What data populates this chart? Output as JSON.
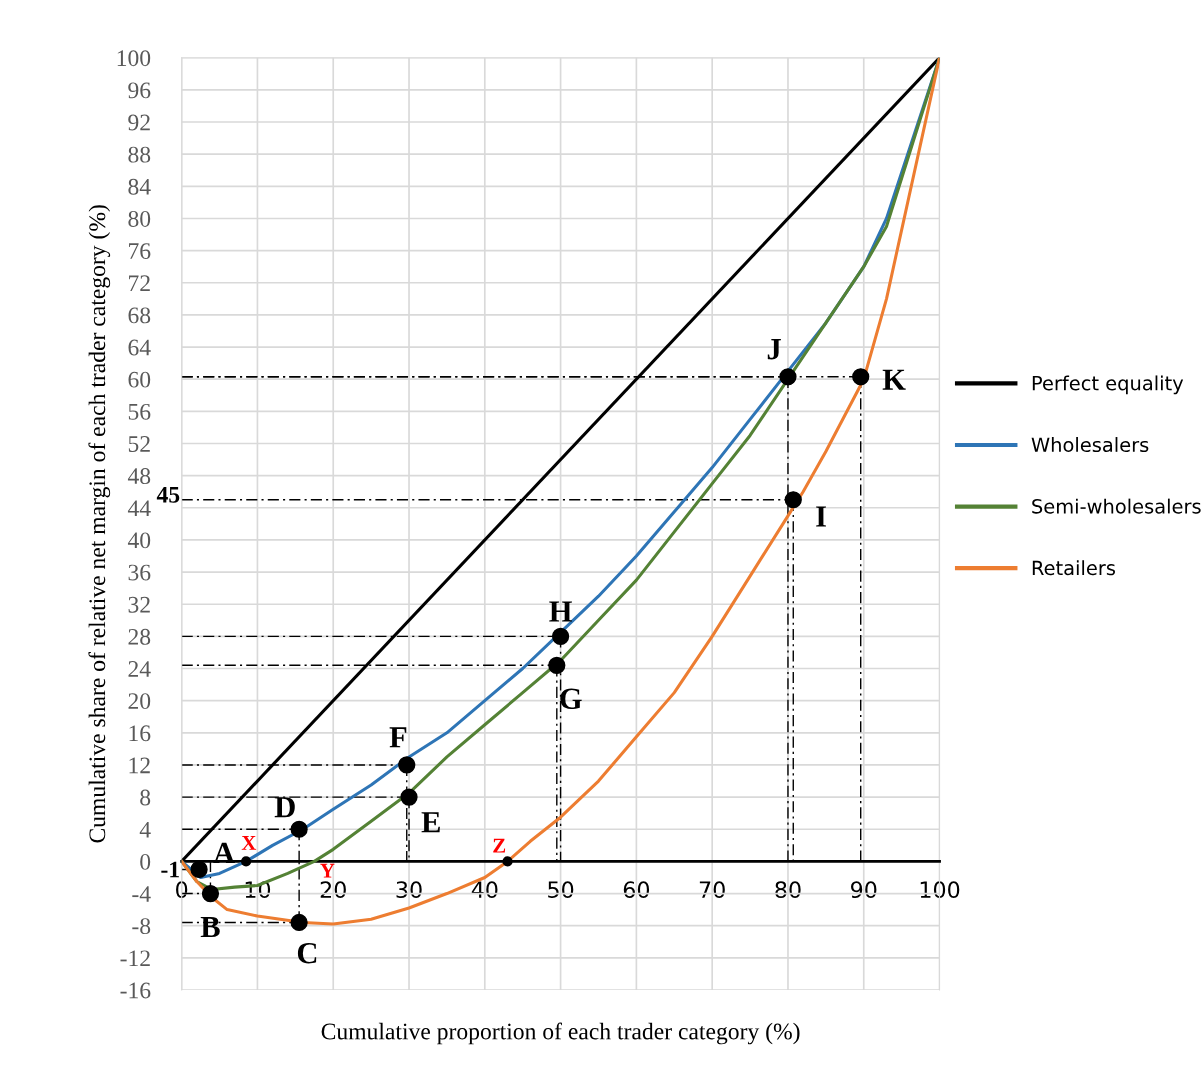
{
  "chart_data": {
    "type": "line",
    "xlabel": "Cumulative proportion of each trader category (%)",
    "ylabel": "Cumulative share of relative net margin of each trader category (%)",
    "xlim": [
      0,
      100
    ],
    "xticks": [
      0,
      10,
      20,
      30,
      40,
      50,
      60,
      70,
      80,
      90,
      100
    ],
    "ylim": [
      -16,
      100
    ],
    "yticks": [
      -16,
      -12,
      -8,
      -4,
      0,
      4,
      8,
      12,
      16,
      20,
      24,
      28,
      32,
      36,
      40,
      44,
      48,
      52,
      56,
      60,
      64,
      68,
      72,
      76,
      80,
      84,
      88,
      92,
      96,
      100
    ],
    "grid": true,
    "legend": "right",
    "marker": "none",
    "line_style": "solid",
    "series": [
      {
        "name": "Perfect equality",
        "color": "#000000",
        "x": [
          0,
          100
        ],
        "values": [
          0,
          100
        ]
      },
      {
        "name": "Wholesalers",
        "color": "#2e75b6",
        "x": [
          0,
          2.5,
          5,
          8.5,
          12,
          16,
          20,
          25,
          30,
          35,
          40,
          45,
          50,
          55,
          60,
          65,
          70,
          75,
          80,
          85,
          90,
          93,
          100
        ],
        "values": [
          0,
          -2,
          -1.5,
          0,
          2,
          4,
          6.5,
          9.5,
          13,
          16,
          20,
          24,
          28.5,
          33,
          38,
          43.5,
          49,
          55,
          61,
          67,
          74,
          80,
          100
        ]
      },
      {
        "name": "Semi-wholesalers",
        "color": "#548235",
        "x": [
          0,
          2,
          4,
          7,
          10,
          14,
          17.5,
          20,
          25,
          30,
          35,
          40,
          45,
          50,
          55,
          60,
          65,
          70,
          75,
          80,
          85,
          90,
          93,
          100
        ],
        "values": [
          0,
          -2.5,
          -3.5,
          -3.2,
          -3,
          -1.5,
          0,
          1.5,
          5,
          8.5,
          13,
          17,
          21,
          25,
          30,
          35,
          41,
          47,
          53,
          60,
          67,
          74,
          79,
          100
        ]
      },
      {
        "name": "Retailers",
        "color": "#ed7d31",
        "x": [
          0,
          2,
          4,
          6,
          10,
          16,
          20,
          25,
          30,
          35,
          40,
          43,
          46,
          50,
          55,
          60,
          65,
          70,
          75,
          80,
          82,
          85,
          90,
          93,
          100
        ],
        "values": [
          0,
          -2.5,
          -4.5,
          -6,
          -6.8,
          -7.6,
          -7.8,
          -7.2,
          -5.8,
          -4,
          -2,
          0,
          2.5,
          5.5,
          10,
          15.5,
          21,
          28,
          35.5,
          43,
          46,
          51,
          60,
          70,
          100
        ]
      },
      {
        "type": "scatter",
        "marker": "circle",
        "line_style": "dashed",
        "color": "#000000",
        "x": [
          2.3,
          3.8,
          15.5,
          15.5,
          30,
          29.7,
          49.5,
          50,
          80.7,
          80,
          89.6
        ],
        "values": [
          -1,
          -4,
          -7.6,
          4,
          8,
          12,
          24.4,
          28,
          45,
          60.3,
          60.3
        ]
      },
      {
        "type": "scatter",
        "marker": "circle",
        "color": "#000000",
        "x": [
          8.5,
          43
        ],
        "values": [
          0,
          0
        ]
      }
    ],
    "annotations": [
      {
        "text": "A",
        "x": 2.3,
        "y": -1
      },
      {
        "text": "B",
        "x": 3.8,
        "y": -4
      },
      {
        "text": "C",
        "x": 15.5,
        "y": -7.6
      },
      {
        "text": "D",
        "x": 15.5,
        "y": 4
      },
      {
        "text": "E",
        "x": 30,
        "y": 8
      },
      {
        "text": "F",
        "x": 29.7,
        "y": 12
      },
      {
        "text": "G",
        "x": 49.5,
        "y": 24.4
      },
      {
        "text": "H",
        "x": 50,
        "y": 28
      },
      {
        "text": "I",
        "x": 80.7,
        "y": 45
      },
      {
        "text": "J",
        "x": 80,
        "y": 60.3
      },
      {
        "text": "K",
        "x": 89.6,
        "y": 60.3
      },
      {
        "text": "X",
        "x": 8.5,
        "y": 0
      },
      {
        "text": "Y",
        "x": 18.5,
        "y": 0
      },
      {
        "text": "Z",
        "x": 43,
        "y": 0
      },
      "45",
      "-1"
    ]
  }
}
